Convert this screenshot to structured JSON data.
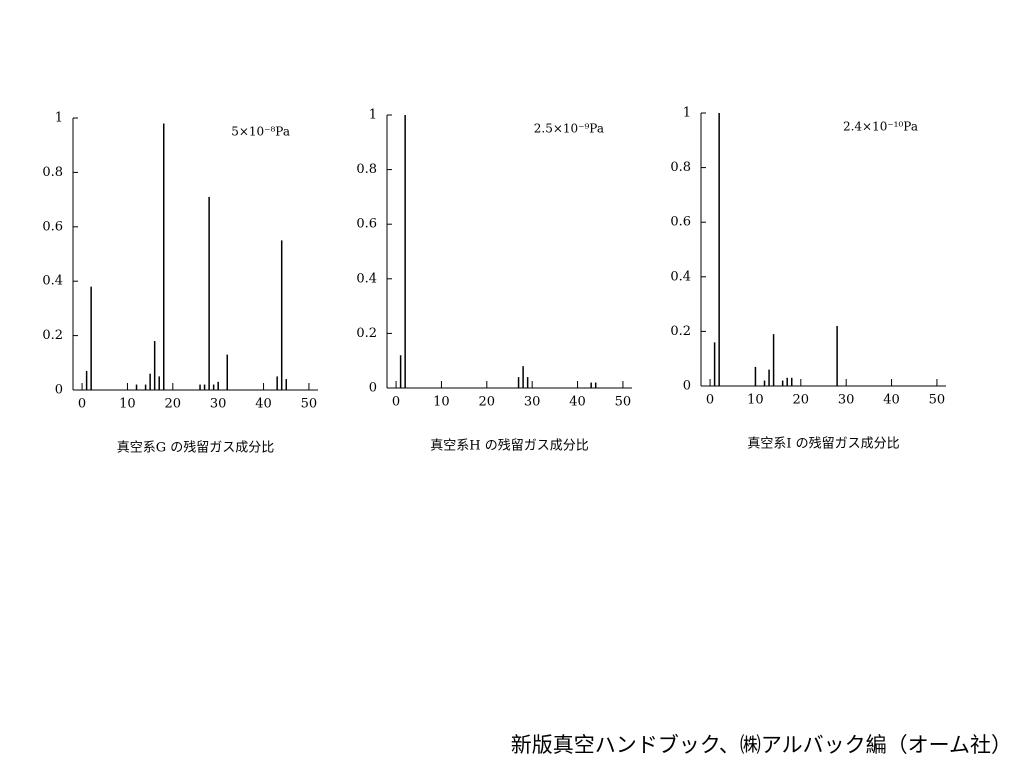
{
  "chart_data": [
    {
      "type": "bar",
      "title": "真空系G の残留ガス成分比",
      "annotation": "5×10⁻⁸Pa",
      "color": "#000000",
      "x": [
        1,
        2,
        12,
        14,
        15,
        16,
        17,
        18,
        26,
        27,
        28,
        29,
        30,
        32,
        43,
        44,
        45
      ],
      "values": [
        0.07,
        0.38,
        0.02,
        0.02,
        0.06,
        0.18,
        0.05,
        0.98,
        0.02,
        0.02,
        0.71,
        0.02,
        0.03,
        0.13,
        0.05,
        0.55,
        0.04
      ],
      "xlim": [
        -2,
        52
      ],
      "xticks": [
        0,
        10,
        20,
        30,
        40,
        50
      ],
      "ylim": [
        0,
        1
      ],
      "yticks": [
        0,
        0.2,
        0.4,
        0.6,
        0.8,
        1
      ]
    },
    {
      "type": "bar",
      "title": "真空系H の残留ガス成分比",
      "annotation": "2.5×10⁻⁹Pa",
      "color": "#000000",
      "x": [
        1,
        2,
        27,
        28,
        29,
        43,
        44
      ],
      "values": [
        0.12,
        1,
        0.04,
        0.08,
        0.04,
        0.02,
        0.02
      ],
      "xlim": [
        -2,
        52
      ],
      "xticks": [
        0,
        10,
        20,
        30,
        40,
        50
      ],
      "ylim": [
        0,
        1
      ],
      "yticks": [
        0,
        0.2,
        0.4,
        0.6,
        0.8,
        1
      ]
    },
    {
      "type": "bar",
      "title": "真空系I の残留ガス成分比",
      "annotation": "2.4×10⁻¹⁰Pa",
      "color": "#000000",
      "x": [
        1,
        2,
        10,
        12,
        13,
        14,
        16,
        17,
        18,
        28
      ],
      "values": [
        0.16,
        1,
        0.07,
        0.02,
        0.06,
        0.19,
        0.02,
        0.03,
        0.03,
        0.22
      ],
      "xlim": [
        -2,
        52
      ],
      "xticks": [
        0,
        10,
        20,
        30,
        40,
        50
      ],
      "ylim": [
        0,
        1
      ],
      "yticks": [
        0,
        0.2,
        0.4,
        0.6,
        0.8,
        1
      ]
    }
  ],
  "footer": "新版真空ハンドブック、㈱アルバック編（オーム社）"
}
